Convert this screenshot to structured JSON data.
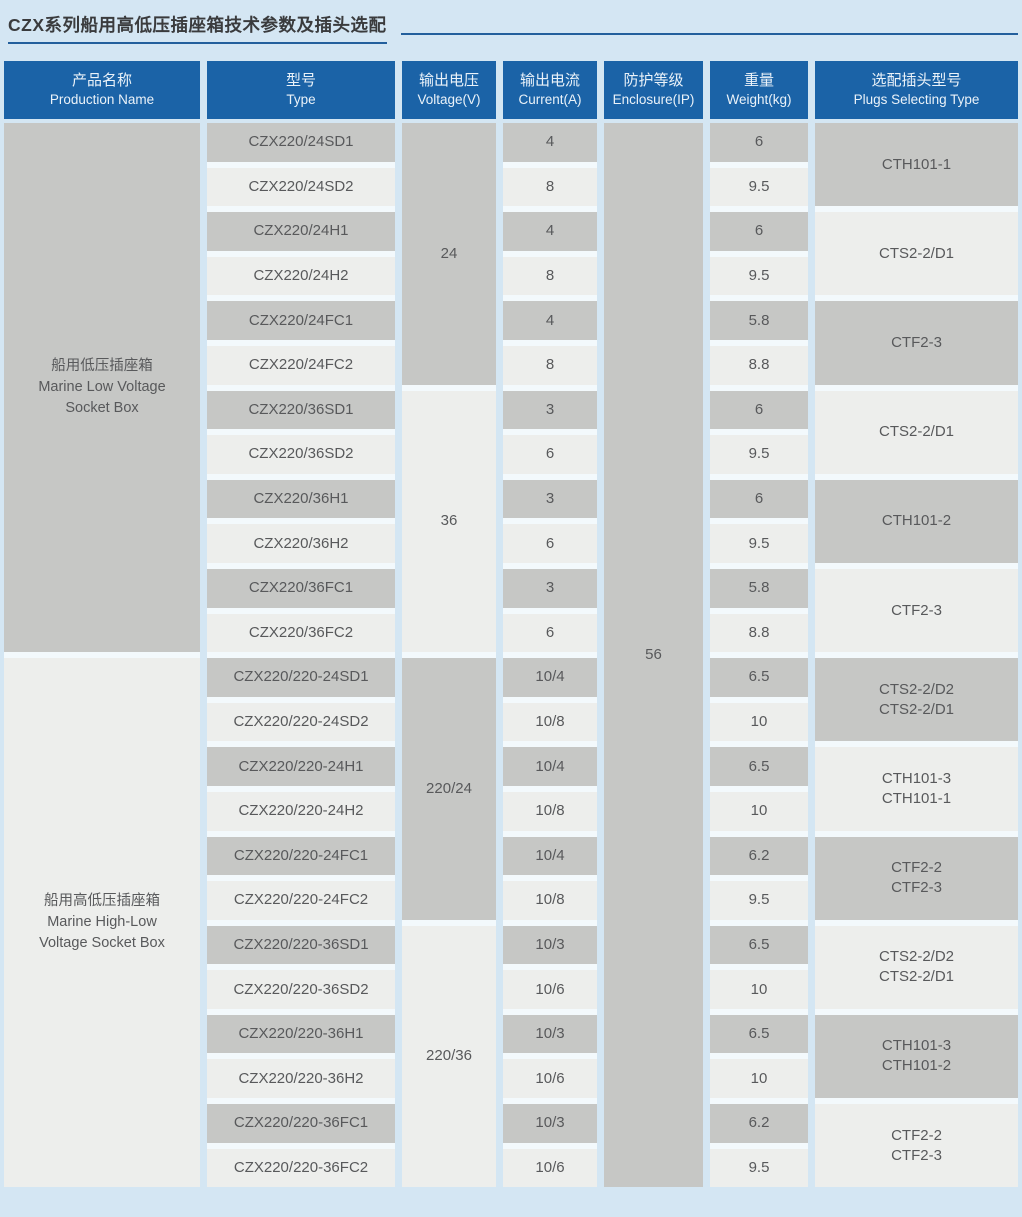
{
  "page": {
    "title": "CZX系列船用高低压插座箱技术参数及插头选配"
  },
  "colors": {
    "page_bg": "#d4e6f3",
    "header_bg": "#1b63a7",
    "header_text": "#eaf2f9",
    "cell_gray": "#c6c7c5",
    "cell_light": "#edeeec",
    "cell_text": "#58595b",
    "accent_rule": "#235f9c",
    "column_bg": "#f3f9fc"
  },
  "table": {
    "headers": [
      {
        "zh": "产品名称",
        "en": "Production Name"
      },
      {
        "zh": "型号",
        "en": "Type"
      },
      {
        "zh": "输出电压",
        "en": "Voltage(V)"
      },
      {
        "zh": "输出电流",
        "en": "Current(A)"
      },
      {
        "zh": "防护等级",
        "en": "Enclosure(IP)"
      },
      {
        "zh": "重量",
        "en": "Weight(kg)"
      },
      {
        "zh": "选配插头型号",
        "en": "Plugs Selecting Type"
      }
    ],
    "product_groups": [
      {
        "lines": [
          "船用低压插座箱",
          "Marine Low Voltage",
          "Socket Box"
        ],
        "row_span": 12,
        "shade": "gray"
      },
      {
        "lines": [
          "船用高低压插座箱",
          "Marine High-Low",
          "Voltage Socket Box"
        ],
        "row_span": 12,
        "shade": "light"
      }
    ],
    "voltage_groups": [
      {
        "value": "24",
        "row_span": 6,
        "shade": "gray"
      },
      {
        "value": "36",
        "row_span": 6,
        "shade": "light"
      },
      {
        "value": "220/24",
        "row_span": 6,
        "shade": "gray"
      },
      {
        "value": "220/36",
        "row_span": 6,
        "shade": "light"
      }
    ],
    "enclosure_group": {
      "value": "56",
      "row_span": 24,
      "shade": "gray"
    },
    "rows": [
      {
        "type": "CZX220/24SD1",
        "current": "4",
        "weight": "6"
      },
      {
        "type": "CZX220/24SD2",
        "current": "8",
        "weight": "9.5"
      },
      {
        "type": "CZX220/24H1",
        "current": "4",
        "weight": "6"
      },
      {
        "type": "CZX220/24H2",
        "current": "8",
        "weight": "9.5"
      },
      {
        "type": "CZX220/24FC1",
        "current": "4",
        "weight": "5.8"
      },
      {
        "type": "CZX220/24FC2",
        "current": "8",
        "weight": "8.8"
      },
      {
        "type": "CZX220/36SD1",
        "current": "3",
        "weight": "6"
      },
      {
        "type": "CZX220/36SD2",
        "current": "6",
        "weight": "9.5"
      },
      {
        "type": "CZX220/36H1",
        "current": "3",
        "weight": "6"
      },
      {
        "type": "CZX220/36H2",
        "current": "6",
        "weight": "9.5"
      },
      {
        "type": "CZX220/36FC1",
        "current": "3",
        "weight": "5.8"
      },
      {
        "type": "CZX220/36FC2",
        "current": "6",
        "weight": "8.8"
      },
      {
        "type": "CZX220/220-24SD1",
        "current": "10/4",
        "weight": "6.5"
      },
      {
        "type": "CZX220/220-24SD2",
        "current": "10/8",
        "weight": "10"
      },
      {
        "type": "CZX220/220-24H1",
        "current": "10/4",
        "weight": "6.5"
      },
      {
        "type": "CZX220/220-24H2",
        "current": "10/8",
        "weight": "10"
      },
      {
        "type": "CZX220/220-24FC1",
        "current": "10/4",
        "weight": "6.2"
      },
      {
        "type": "CZX220/220-24FC2",
        "current": "10/8",
        "weight": "9.5"
      },
      {
        "type": "CZX220/220-36SD1",
        "current": "10/3",
        "weight": "6.5"
      },
      {
        "type": "CZX220/220-36SD2",
        "current": "10/6",
        "weight": "10"
      },
      {
        "type": "CZX220/220-36H1",
        "current": "10/3",
        "weight": "6.5"
      },
      {
        "type": "CZX220/220-36H2",
        "current": "10/6",
        "weight": "10"
      },
      {
        "type": "CZX220/220-36FC1",
        "current": "10/3",
        "weight": "6.2"
      },
      {
        "type": "CZX220/220-36FC2",
        "current": "10/6",
        "weight": "9.5"
      }
    ],
    "plug_groups": [
      {
        "lines": [
          "CTH101-1"
        ],
        "row_span": 2,
        "shade": "gray"
      },
      {
        "lines": [
          "CTS2-2/D1"
        ],
        "row_span": 2,
        "shade": "light"
      },
      {
        "lines": [
          "CTF2-3"
        ],
        "row_span": 2,
        "shade": "gray"
      },
      {
        "lines": [
          "CTS2-2/D1"
        ],
        "row_span": 2,
        "shade": "light"
      },
      {
        "lines": [
          "CTH101-2"
        ],
        "row_span": 2,
        "shade": "gray"
      },
      {
        "lines": [
          "CTF2-3"
        ],
        "row_span": 2,
        "shade": "light"
      },
      {
        "lines": [
          "CTS2-2/D2",
          "CTS2-2/D1"
        ],
        "row_span": 2,
        "shade": "gray"
      },
      {
        "lines": [
          "CTH101-3",
          "CTH101-1"
        ],
        "row_span": 2,
        "shade": "light"
      },
      {
        "lines": [
          "CTF2-2",
          "CTF2-3"
        ],
        "row_span": 2,
        "shade": "gray"
      },
      {
        "lines": [
          "CTS2-2/D2",
          "CTS2-2/D1"
        ],
        "row_span": 2,
        "shade": "light"
      },
      {
        "lines": [
          "CTH101-3",
          "CTH101-2"
        ],
        "row_span": 2,
        "shade": "gray"
      },
      {
        "lines": [
          "CTF2-2",
          "CTF2-3"
        ],
        "row_span": 2,
        "shade": "light"
      }
    ]
  }
}
